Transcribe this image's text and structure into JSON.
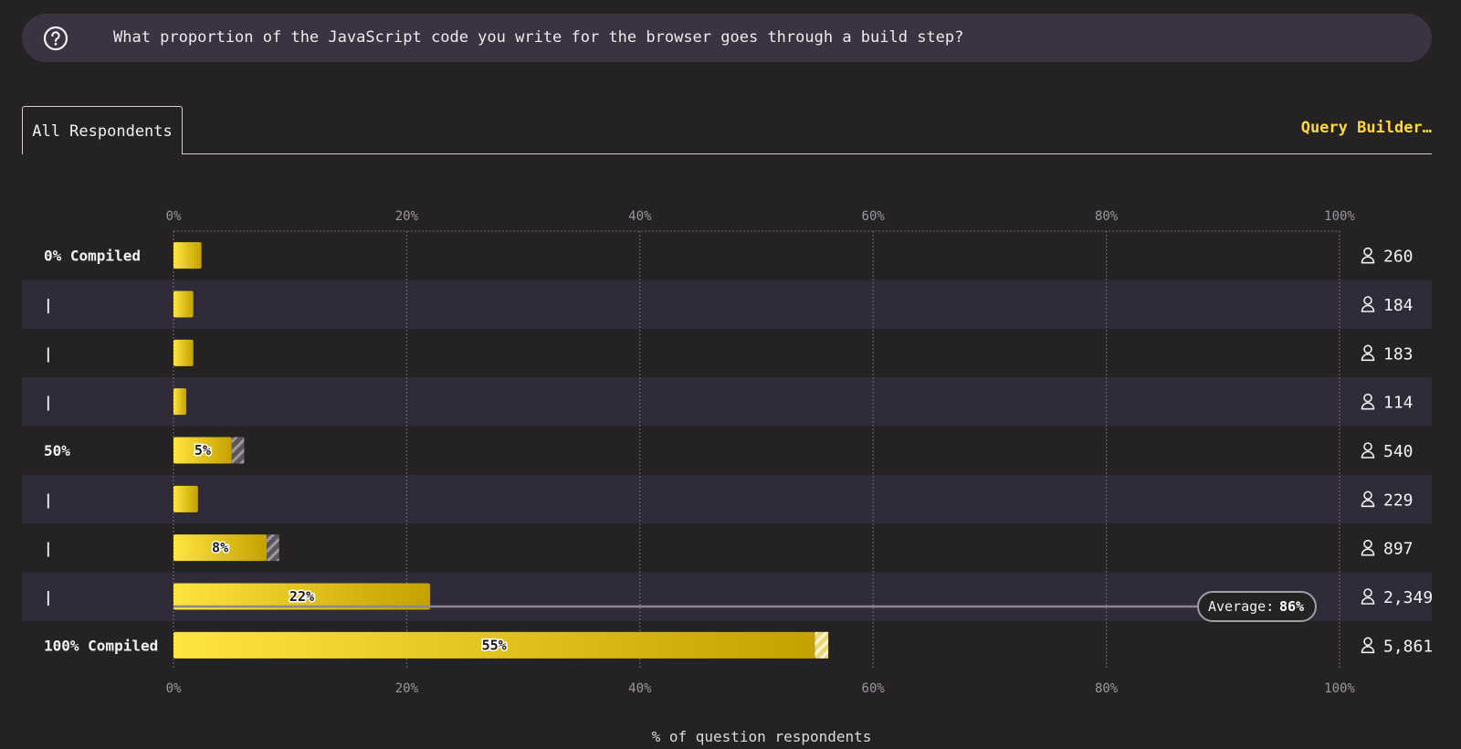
{
  "question": {
    "text": "What proportion of the JavaScript code you write for the browser goes through a build step?",
    "icon": "question-circle-icon"
  },
  "tabs": [
    {
      "label": "All Respondents",
      "active": true
    }
  ],
  "query_builder_label": "Query Builder…",
  "colors": {
    "background": "#252223",
    "band": "#302b38",
    "bar_start": "#ffe53f",
    "bar_end": "#c4a100",
    "accent": "#ffd83a"
  },
  "chart_data": {
    "type": "bar",
    "orientation": "horizontal",
    "categories": [
      "0% Compiled",
      "|",
      "|",
      "|",
      "50%",
      "|",
      "|",
      "|",
      "100% Compiled"
    ],
    "values": [
      2.4,
      1.7,
      1.7,
      1.1,
      5,
      2.1,
      8,
      22,
      55
    ],
    "error_margin": [
      0,
      0,
      0,
      0,
      0.9,
      0,
      0.9,
      0,
      1
    ],
    "bar_labels": [
      "",
      "",
      "",
      "",
      "5%",
      "",
      "8%",
      "22%",
      "55%"
    ],
    "counts": [
      "260",
      "184",
      "183",
      "114",
      "540",
      "229",
      "897",
      "2,349",
      "5,861"
    ],
    "xlim": [
      0,
      100
    ],
    "xticks": [
      "0%",
      "20%",
      "40%",
      "60%",
      "80%",
      "100%"
    ],
    "xlabel": "% of question respondents",
    "average": {
      "label": "Average:",
      "value": "86%",
      "row": 7
    },
    "grid": true
  }
}
